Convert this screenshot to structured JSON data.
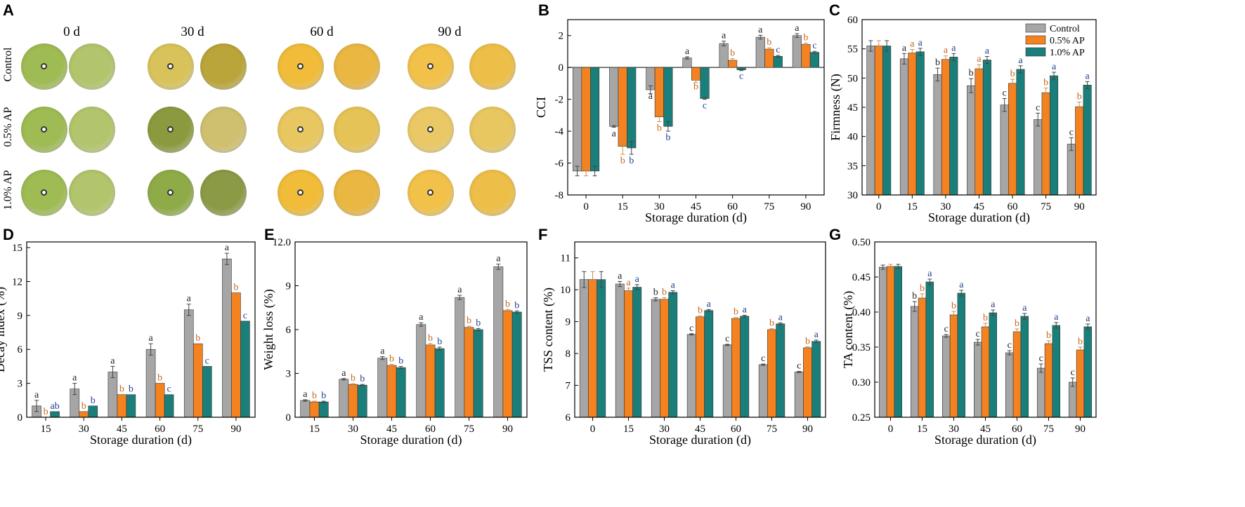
{
  "colors": {
    "control": "#a6a6a6",
    "ap05": "#f58220",
    "ap10": "#1a7f7a",
    "sig_control": "#222222",
    "sig_ap05": "#c8651a",
    "sig_ap10": "#1f3f8f"
  },
  "panel_a": {
    "letter": "A",
    "days": [
      "0 d",
      "30 d",
      "60 d",
      "90 d"
    ],
    "rows": [
      "Control",
      "0.5% AP",
      "1.0% AP"
    ]
  },
  "chart_data": [
    {
      "panel": "B",
      "type": "bar",
      "ylabel": "CCI",
      "xlabel": "Storage duration (d)",
      "categories": [
        "0",
        "15",
        "30",
        "45",
        "60",
        "75",
        "90"
      ],
      "ylim": [
        -8,
        3
      ],
      "yticks": [
        -8,
        -6,
        -4,
        -2,
        0,
        2
      ],
      "ytick_labels": [
        "-8",
        "-6",
        "-4",
        "-2",
        "0",
        "2"
      ],
      "legend": true,
      "legend_labels": [
        "Control",
        "0.5% AP",
        "1.0% AP"
      ],
      "series": [
        {
          "name": "Control",
          "values": [
            -6.5,
            -3.7,
            -1.4,
            0.6,
            1.5,
            1.9,
            2.0
          ],
          "errors": [
            0.3,
            0.05,
            0.25,
            0.07,
            0.15,
            0.12,
            0.12
          ],
          "labels": [
            "",
            "a",
            "a",
            "a",
            "a",
            "a",
            "a"
          ]
        },
        {
          "name": "0.5% AP",
          "values": [
            -6.5,
            -4.95,
            -3.1,
            -0.8,
            0.45,
            1.15,
            1.45
          ],
          "errors": [
            0.3,
            0.5,
            0.3,
            0.15,
            0.1,
            0.08,
            0.08
          ],
          "labels": [
            "",
            "b",
            "b",
            "b",
            "b",
            "b",
            "b"
          ]
        },
        {
          "name": "1.0% AP",
          "values": [
            -6.5,
            -5.05,
            -3.7,
            -1.95,
            -0.15,
            0.7,
            0.95
          ],
          "errors": [
            0.3,
            0.4,
            0.3,
            0.05,
            0.05,
            0.06,
            0.06
          ],
          "labels": [
            "",
            "b",
            "b",
            "c",
            "c",
            "c",
            "c"
          ]
        }
      ]
    },
    {
      "panel": "C",
      "type": "bar",
      "ylabel": "Firmness (N)",
      "xlabel": "Storage duration (d)",
      "categories": [
        "0",
        "15",
        "30",
        "45",
        "60",
        "75",
        "90"
      ],
      "ylim": [
        30,
        60
      ],
      "yticks": [
        30,
        35,
        40,
        45,
        50,
        55,
        60
      ],
      "ytick_labels": [
        "30",
        "35",
        "40",
        "45",
        "50",
        "55",
        "60"
      ],
      "legend": true,
      "legend_labels": [
        "Control",
        "0.5% AP",
        "1.0% AP"
      ],
      "series": [
        {
          "name": "Control",
          "values": [
            55.5,
            53.3,
            50.6,
            48.7,
            45.4,
            42.9,
            38.7
          ],
          "errors": [
            0.9,
            0.9,
            1.1,
            1.2,
            1.1,
            1.1,
            1.1
          ],
          "labels": [
            "",
            "a",
            "b",
            "b",
            "c",
            "c",
            "c"
          ]
        },
        {
          "name": "0.5% AP",
          "values": [
            55.5,
            54.3,
            53.2,
            51.6,
            49.1,
            47.5,
            45.1
          ],
          "errors": [
            0.9,
            0.6,
            0.6,
            0.7,
            0.7,
            0.8,
            0.8
          ],
          "labels": [
            "",
            "a",
            "a",
            "a",
            "b",
            "b",
            "b"
          ]
        },
        {
          "name": "1.0% AP",
          "values": [
            55.5,
            54.5,
            53.6,
            53.1,
            51.5,
            50.4,
            48.8
          ],
          "errors": [
            0.9,
            0.6,
            0.6,
            0.6,
            0.6,
            0.6,
            0.6
          ],
          "labels": [
            "",
            "a",
            "a",
            "a",
            "a",
            "a",
            "a"
          ]
        }
      ]
    },
    {
      "panel": "D",
      "type": "bar",
      "ylabel": "Decay index (%)",
      "xlabel": "Storage duration (d)",
      "categories": [
        "15",
        "30",
        "45",
        "60",
        "75",
        "90"
      ],
      "ylim": [
        0,
        15.5
      ],
      "yticks": [
        0,
        3,
        6,
        9,
        12,
        15
      ],
      "ytick_labels": [
        "0",
        "3",
        "6",
        "9",
        "12",
        "15"
      ],
      "legend": false,
      "series": [
        {
          "name": "Control",
          "values": [
            1.0,
            2.5,
            4.0,
            6.0,
            9.5,
            14.0
          ],
          "errors": [
            0.5,
            0.5,
            0.5,
            0.5,
            0.5,
            0.5
          ],
          "labels": [
            "a",
            "a",
            "a",
            "a",
            "a",
            "a"
          ]
        },
        {
          "name": "0.5% AP",
          "values": [
            0.0,
            0.5,
            2.0,
            3.0,
            6.5,
            11.0
          ],
          "errors": [
            0,
            0,
            0,
            0,
            0,
            0
          ],
          "labels": [
            "b",
            "b",
            "b",
            "b",
            "b",
            "b"
          ]
        },
        {
          "name": "1.0% AP",
          "values": [
            0.5,
            1.0,
            2.0,
            2.0,
            4.5,
            8.5
          ],
          "errors": [
            0,
            0,
            0,
            0,
            0,
            0
          ],
          "labels": [
            "ab",
            "b",
            "b",
            "c",
            "c",
            "c"
          ]
        }
      ]
    },
    {
      "panel": "E",
      "type": "bar",
      "ylabel": "Weight loss (%)",
      "xlabel": "Storage duration (d)",
      "categories": [
        "15",
        "30",
        "45",
        "60",
        "75",
        "90"
      ],
      "ylim": [
        0,
        12
      ],
      "yticks": [
        0,
        3,
        6,
        9,
        12
      ],
      "ytick_labels": [
        "0",
        "3",
        "6",
        "9",
        "12.0"
      ],
      "legend": false,
      "series": [
        {
          "name": "Control",
          "values": [
            1.15,
            2.6,
            4.05,
            6.35,
            8.2,
            10.3
          ],
          "errors": [
            0.05,
            0.05,
            0.1,
            0.12,
            0.15,
            0.18
          ],
          "labels": [
            "a",
            "a",
            "a",
            "a",
            "a",
            "a"
          ]
        },
        {
          "name": "0.5% AP",
          "values": [
            1.05,
            2.25,
            3.55,
            4.95,
            6.15,
            7.3
          ],
          "errors": [
            0.05,
            0.05,
            0.08,
            0.1,
            0.08,
            0.08
          ],
          "labels": [
            "b",
            "b",
            "b",
            "b",
            "b",
            "b"
          ]
        },
        {
          "name": "1.0% AP",
          "values": [
            1.05,
            2.2,
            3.4,
            4.7,
            6.0,
            7.2
          ],
          "errors": [
            0.05,
            0.05,
            0.08,
            0.1,
            0.08,
            0.08
          ],
          "labels": [
            "b",
            "b",
            "b",
            "b",
            "b",
            "b"
          ]
        }
      ]
    },
    {
      "panel": "F",
      "type": "bar",
      "ylabel": "TSS content (%)",
      "xlabel": "Storage duration (d)",
      "categories": [
        "0",
        "15",
        "30",
        "45",
        "60",
        "75",
        "90"
      ],
      "ylim": [
        6,
        11.5
      ],
      "yticks": [
        6,
        7,
        8,
        9,
        10,
        11
      ],
      "ytick_labels": [
        "6",
        "7",
        "8",
        "9",
        "10",
        "11"
      ],
      "legend": false,
      "series": [
        {
          "name": "Control",
          "values": [
            10.32,
            10.18,
            9.7,
            8.6,
            8.27,
            7.65,
            7.42
          ],
          "errors": [
            0.25,
            0.08,
            0.05,
            0.02,
            0.02,
            0.02,
            0.02
          ],
          "labels": [
            "",
            "a",
            "b",
            "c",
            "c",
            "c",
            "c"
          ]
        },
        {
          "name": "0.5% AP",
          "values": [
            10.32,
            9.97,
            9.7,
            9.15,
            9.1,
            8.75,
            8.18
          ],
          "errors": [
            0.25,
            0.08,
            0.05,
            0.03,
            0.03,
            0.03,
            0.03
          ],
          "labels": [
            "",
            "a",
            "b",
            "b",
            "b",
            "b",
            "b"
          ]
        },
        {
          "name": "1.0% AP",
          "values": [
            10.32,
            10.08,
            9.92,
            9.35,
            9.17,
            8.93,
            8.38
          ],
          "errors": [
            0.25,
            0.08,
            0.05,
            0.03,
            0.03,
            0.03,
            0.04
          ],
          "labels": [
            "",
            "a",
            "a",
            "a",
            "a",
            "a",
            "a"
          ]
        }
      ]
    },
    {
      "panel": "G",
      "type": "bar",
      "ylabel": "TA content (%)",
      "xlabel": "Storage duration (d)",
      "categories": [
        "0",
        "15",
        "30",
        "45",
        "60",
        "75",
        "90"
      ],
      "ylim": [
        0.25,
        0.5
      ],
      "yticks": [
        0.25,
        0.3,
        0.35,
        0.4,
        0.45,
        0.5
      ],
      "ytick_labels": [
        "0.25",
        "0.30",
        "0.35",
        "0.40",
        "0.45",
        "0.50"
      ],
      "legend": false,
      "series": [
        {
          "name": "Control",
          "values": [
            0.464,
            0.408,
            0.366,
            0.357,
            0.342,
            0.32,
            0.3
          ],
          "errors": [
            0.003,
            0.007,
            0.002,
            0.004,
            0.003,
            0.006,
            0.006
          ],
          "labels": [
            "",
            "b",
            "c",
            "c",
            "c",
            "c",
            "c"
          ]
        },
        {
          "name": "0.5% AP",
          "values": [
            0.465,
            0.42,
            0.396,
            0.379,
            0.372,
            0.355,
            0.346
          ],
          "errors": [
            0.003,
            0.006,
            0.005,
            0.005,
            0.004,
            0.004,
            0.004
          ],
          "labels": [
            "",
            "b",
            "b",
            "b",
            "b",
            "b",
            "b"
          ]
        },
        {
          "name": "1.0% AP",
          "values": [
            0.465,
            0.443,
            0.427,
            0.399,
            0.394,
            0.381,
            0.379
          ],
          "errors": [
            0.003,
            0.004,
            0.004,
            0.004,
            0.004,
            0.004,
            0.004
          ],
          "labels": [
            "",
            "a",
            "a",
            "a",
            "a",
            "a",
            "a"
          ]
        }
      ]
    }
  ]
}
